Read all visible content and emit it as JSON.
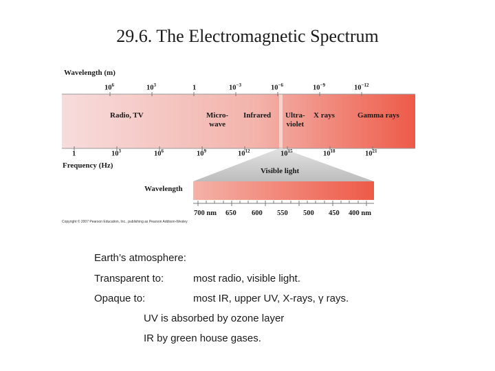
{
  "title": "29.6. The Electromagnetic Spectrum",
  "figure": {
    "wavelength_label": "Wavelength (m)",
    "wavelength_ticks": [
      {
        "base": "10",
        "exp": "6"
      },
      {
        "base": "10",
        "exp": "3"
      },
      {
        "base": "1",
        "exp": ""
      },
      {
        "base": "10",
        "exp": "−3"
      },
      {
        "base": "10",
        "exp": "−6"
      },
      {
        "base": "10",
        "exp": "−9"
      },
      {
        "base": "10",
        "exp": "−12"
      }
    ],
    "bands": {
      "radio_tv": "Radio, TV",
      "micro_1": "Micro-",
      "micro_2": "wave",
      "infrared": "Infrared",
      "ultra_1": "Ultra-",
      "ultra_2": "violet",
      "xrays": "X rays",
      "gamma": "Gamma rays"
    },
    "frequency_ticks": [
      {
        "base": "1",
        "exp": ""
      },
      {
        "base": "10",
        "exp": "3"
      },
      {
        "base": "10",
        "exp": "6"
      },
      {
        "base": "10",
        "exp": "9"
      },
      {
        "base": "10",
        "exp": "12"
      },
      {
        "base": "10",
        "exp": "15"
      },
      {
        "base": "10",
        "exp": "18"
      },
      {
        "base": "10",
        "exp": "21"
      }
    ],
    "frequency_label": "Frequency (Hz)",
    "visible_label": "Visible light",
    "visible_wavelength_label": "Wavelength",
    "visible_ticks": [
      "700 nm",
      "650",
      "600",
      "550",
      "500",
      "450",
      "400 nm"
    ],
    "copyright": "Copyright © 2007 Pearson Education, Inc., publishing as Pearson Addison-Wesley"
  },
  "notes": {
    "atmosphere": "Earth’s atmosphere:",
    "transparent_label": "Transparent to:",
    "transparent_value": "most radio, visible light.",
    "opaque_label": "Opaque to:",
    "opaque_value": "most IR, upper UV,  X-rays, γ rays.",
    "uv_line": "UV is absorbed by ozone layer",
    "ir_line": "IR by green house gases."
  },
  "colors": {
    "band_start": "#f7dcdc",
    "band_end": "#ee5a48",
    "visible_start": "#f2a79c",
    "visible_end": "#ee5a48",
    "wedge": "#c9c9c9",
    "uv_stripe": "#f4c4bd"
  }
}
